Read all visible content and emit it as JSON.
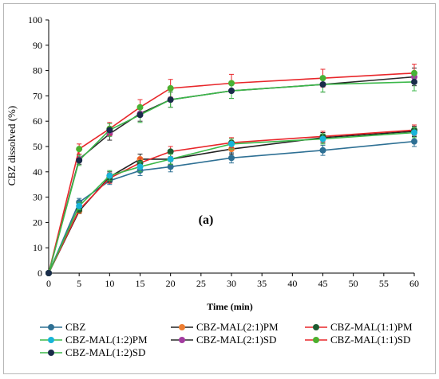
{
  "chart_data": {
    "type": "line",
    "title": "",
    "annotation": "(a)",
    "xlabel": "Time (min)",
    "ylabel": "CBZ dissolved (%)",
    "xlim": [
      0,
      60
    ],
    "ylim": [
      0,
      100
    ],
    "xticks": [
      0,
      5,
      10,
      15,
      20,
      25,
      30,
      35,
      40,
      45,
      50,
      55,
      60
    ],
    "yticks": [
      0,
      10,
      20,
      30,
      40,
      50,
      60,
      70,
      80,
      90,
      100
    ],
    "grid": false,
    "legend_position": "bottom",
    "x": [
      0,
      5,
      10,
      15,
      20,
      30,
      45,
      60
    ],
    "series": [
      {
        "name": "CBZ",
        "color": "#2e7094",
        "values": [
          0,
          28,
          36.5,
          40.5,
          42,
          45.5,
          48.5,
          52
        ],
        "errors": [
          0,
          1.5,
          1.5,
          2,
          2,
          2,
          2,
          2
        ]
      },
      {
        "name": "CBZ-MAL(2:1)PM",
        "color": "#ed7d31",
        "values": [
          0,
          24.5,
          38,
          45,
          45,
          49,
          53.5,
          56
        ],
        "errors": [
          0,
          1,
          2,
          2,
          2,
          2,
          2,
          2
        ]
      },
      {
        "name": "CBZ-MAL(1:1)PM",
        "color": "#1e5c32",
        "values": [
          0,
          25,
          37.5,
          43.5,
          48,
          51.5,
          54,
          56.5
        ],
        "errors": [
          0,
          1,
          2,
          2,
          2,
          2,
          2,
          2
        ]
      },
      {
        "name": "CBZ-MAL(1:2)PM",
        "color": "#18b4d8",
        "values": [
          0,
          26.5,
          38.5,
          42,
          45,
          51,
          53,
          55.5
        ],
        "errors": [
          0,
          1.5,
          2,
          2,
          2,
          2,
          2,
          2
        ]
      },
      {
        "name": "CBZ-MAL(2:1)SD",
        "color": "#a33ba0",
        "values": [
          0,
          45,
          55,
          63,
          68.5,
          72,
          74.5,
          77.5
        ],
        "errors": [
          0,
          2,
          2.5,
          3,
          3,
          3,
          3,
          3.5
        ]
      },
      {
        "name": "CBZ-MAL(1:1)SD",
        "color": "#4caf2e",
        "values": [
          0,
          49,
          57,
          65.5,
          73,
          75,
          77,
          79
        ],
        "errors": [
          0,
          2,
          2.5,
          3,
          3.5,
          3.5,
          3.5,
          3.5
        ]
      },
      {
        "name": "CBZ-MAL(1:2)SD",
        "color": "#1a2b4a",
        "values": [
          0,
          44.5,
          56.5,
          62.5,
          68.5,
          72,
          74.5,
          75.5
        ],
        "errors": [
          0,
          2,
          2.5,
          3,
          3,
          3,
          3,
          3.5
        ]
      }
    ],
    "line_colors": {
      "CBZ": "#2e7094",
      "CBZ-MAL(2:1)PM": "#222222",
      "CBZ-MAL(1:1)PM": "#e8262a",
      "CBZ-MAL(1:2)PM": "#3cb84a",
      "CBZ-MAL(2:1)SD": "#2a2a2a",
      "CBZ-MAL(1:1)SD": "#e8262a",
      "CBZ-MAL(1:2)SD": "#3cb84a"
    }
  }
}
